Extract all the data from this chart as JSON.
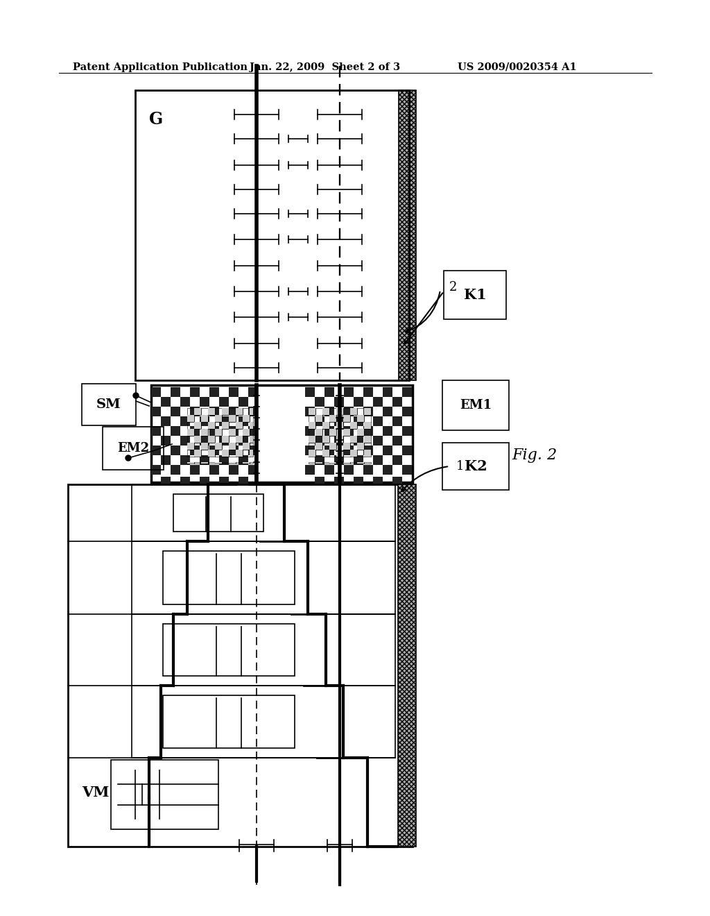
{
  "header_left": "Patent Application Publication",
  "header_mid": "Jan. 22, 2009  Sheet 2 of 3",
  "header_right": "US 2009/0020354 A1",
  "fig_label": "Fig. 2",
  "bg_color": "#ffffff",
  "line_color": "#000000",
  "gray_dark": "#555555",
  "gray_med": "#999999",
  "gray_light": "#bbbbbb"
}
